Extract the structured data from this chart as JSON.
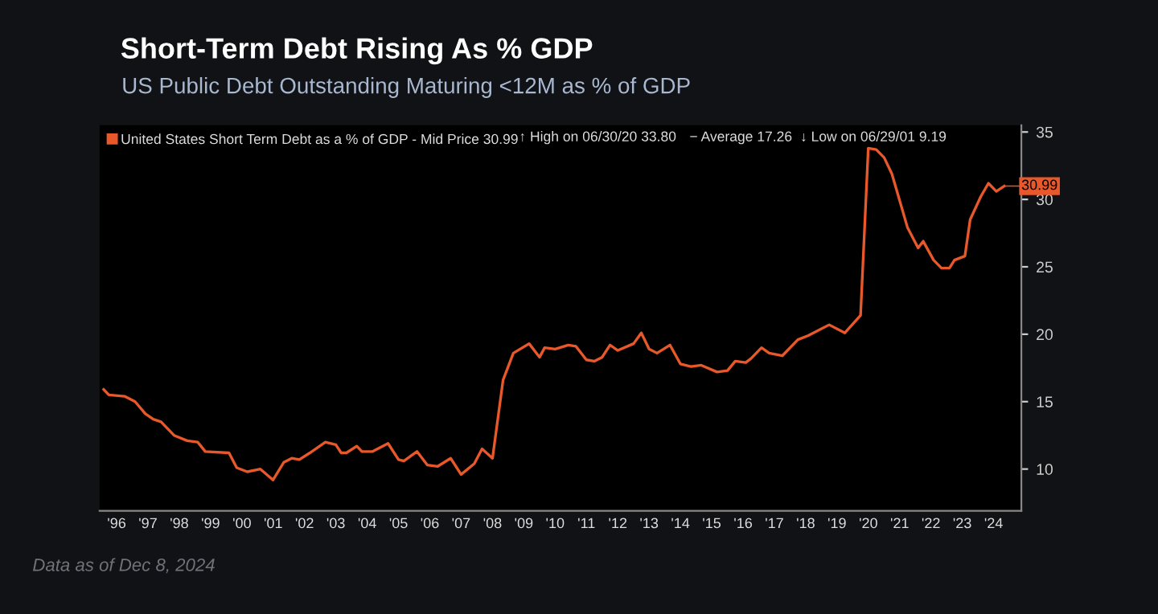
{
  "chart_data": {
    "type": "line",
    "title": "Short-Term Debt Rising As % GDP",
    "subtitle": "US Public Debt Outstanding Maturing <12M as % of GDP",
    "x": [
      "1996-02",
      "1996-04",
      "1996-10",
      "1997-02",
      "1997-06",
      "1997-09",
      "1997-12",
      "1998-05",
      "1998-10",
      "1999-02",
      "1999-05",
      "2000-02",
      "2000-05",
      "2000-09",
      "2001-02",
      "2001-06-29",
      "2001-11",
      "2002-02",
      "2002-05",
      "2002-09",
      "2003-03",
      "2003-07",
      "2003-09",
      "2003-11",
      "2004-03",
      "2004-05",
      "2004-09",
      "2005-03",
      "2005-07",
      "2005-09",
      "2006-02",
      "2006-06",
      "2006-10",
      "2007-03",
      "2007-07",
      "2007-12",
      "2008-03",
      "2008-07",
      "2008-11",
      "2009-03",
      "2009-09",
      "2010-01",
      "2010-03",
      "2010-07",
      "2010-12",
      "2011-03",
      "2011-07",
      "2011-10",
      "2012-01",
      "2012-04",
      "2012-07",
      "2013-01",
      "2013-04",
      "2013-07",
      "2013-10",
      "2014-03",
      "2014-07",
      "2014-11",
      "2015-03",
      "2015-09",
      "2016-01",
      "2016-04",
      "2016-08",
      "2016-10",
      "2017-02",
      "2017-05",
      "2017-10",
      "2018-04",
      "2018-08",
      "2019-04",
      "2019-10",
      "2020-04",
      "2020-06-30",
      "2020-10",
      "2021-01",
      "2021-04",
      "2021-10",
      "2022-02",
      "2022-04",
      "2022-08",
      "2022-11",
      "2023-02",
      "2023-04",
      "2023-08",
      "2023-10",
      "2024-02",
      "2024-05",
      "2024-08",
      "2024-11"
    ],
    "series": [
      {
        "name": "United States Short Term Debt as a % of GDP - Mid Price 30.99",
        "color": "#e8582a",
        "values": [
          15.9,
          15.5,
          15.4,
          15.0,
          14.1,
          13.7,
          13.5,
          12.5,
          12.1,
          12.0,
          11.3,
          11.2,
          10.1,
          9.8,
          10.0,
          9.19,
          10.5,
          10.8,
          10.7,
          11.2,
          12.0,
          11.8,
          11.2,
          11.2,
          11.7,
          11.3,
          11.3,
          11.9,
          10.7,
          10.6,
          11.3,
          10.3,
          10.2,
          10.8,
          9.6,
          10.4,
          11.5,
          10.8,
          16.6,
          18.6,
          19.3,
          18.3,
          19.0,
          18.9,
          19.2,
          19.1,
          18.1,
          18.0,
          18.3,
          19.2,
          18.8,
          19.3,
          20.1,
          18.9,
          18.6,
          19.2,
          17.8,
          17.6,
          17.7,
          17.2,
          17.3,
          18.0,
          17.9,
          18.2,
          19.0,
          18.6,
          18.4,
          19.6,
          19.9,
          20.7,
          20.1,
          21.4,
          33.8,
          33.7,
          33.1,
          31.9,
          27.9,
          26.4,
          26.9,
          25.5,
          24.9,
          24.9,
          25.5,
          25.8,
          28.5,
          30.2,
          31.2,
          30.6,
          30.99
        ]
      }
    ],
    "xlim": [
      "1995-12-15",
      "2025-05-20"
    ],
    "xticks": [
      {
        "value": "1996-07",
        "label": "'96"
      },
      {
        "value": "1997-07",
        "label": "'97"
      },
      {
        "value": "1998-07",
        "label": "'98"
      },
      {
        "value": "1999-07",
        "label": "'99"
      },
      {
        "value": "2000-07",
        "label": "'00"
      },
      {
        "value": "2001-07",
        "label": "'01"
      },
      {
        "value": "2002-07",
        "label": "'02"
      },
      {
        "value": "2003-07",
        "label": "'03"
      },
      {
        "value": "2004-07",
        "label": "'04"
      },
      {
        "value": "2005-07",
        "label": "'05"
      },
      {
        "value": "2006-07",
        "label": "'06"
      },
      {
        "value": "2007-07",
        "label": "'07"
      },
      {
        "value": "2008-07",
        "label": "'08"
      },
      {
        "value": "2009-07",
        "label": "'09"
      },
      {
        "value": "2010-07",
        "label": "'10"
      },
      {
        "value": "2011-07",
        "label": "'11"
      },
      {
        "value": "2012-07",
        "label": "'12"
      },
      {
        "value": "2013-07",
        "label": "'13"
      },
      {
        "value": "2014-07",
        "label": "'14"
      },
      {
        "value": "2015-07",
        "label": "'15"
      },
      {
        "value": "2016-07",
        "label": "'16"
      },
      {
        "value": "2017-07",
        "label": "'17"
      },
      {
        "value": "2018-07",
        "label": "'18"
      },
      {
        "value": "2019-07",
        "label": "'19"
      },
      {
        "value": "2020-07",
        "label": "'20"
      },
      {
        "value": "2021-07",
        "label": "'21"
      },
      {
        "value": "2022-07",
        "label": "'22"
      },
      {
        "value": "2023-07",
        "label": "'23"
      },
      {
        "value": "2024-07",
        "label": "'24"
      }
    ],
    "ylim": [
      6.9,
      35.5
    ],
    "yticks": [
      10,
      15,
      20,
      25,
      30,
      35
    ],
    "grid": false,
    "legend": "top left",
    "marker": "none",
    "line_style": "solid",
    "annotations": [
      "↑ High on 06/30/20 33.80",
      "− Average 17.26",
      "↓ Low on 06/29/01 9.19",
      {
        "text": "30.99",
        "x": "2024-11",
        "y": 30.99
      },
      "Data as of Dec 8, 2024"
    ]
  }
}
